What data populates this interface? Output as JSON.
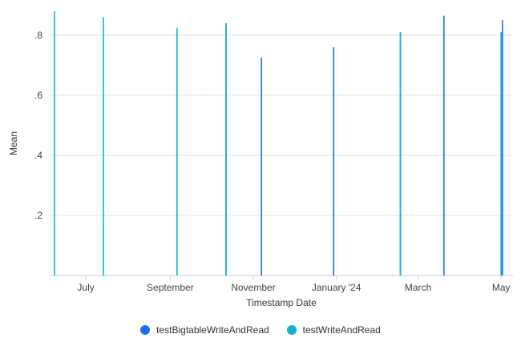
{
  "chart_data": {
    "type": "bar",
    "title": "",
    "xlabel": "Timestamp Date",
    "ylabel": "Mean",
    "ylim": [
      0,
      0.88
    ],
    "yticks": [
      {
        "value": 0.2,
        "label": ".2"
      },
      {
        "value": 0.4,
        "label": ".4"
      },
      {
        "value": 0.6,
        "label": ".6"
      },
      {
        "value": 0.8,
        "label": ".8"
      }
    ],
    "xlim": [
      "2023-06-08",
      "2024-05-05"
    ],
    "xticks": [
      {
        "date": "2023-07-01",
        "label": "July"
      },
      {
        "date": "2023-09-01",
        "label": "September"
      },
      {
        "date": "2023-11-01",
        "label": "November"
      },
      {
        "date": "2024-01-01",
        "label": "January '24"
      },
      {
        "date": "2024-03-01",
        "label": "March"
      },
      {
        "date": "2024-05-01",
        "label": "May"
      }
    ],
    "series": [
      {
        "name": "testBigtableWriteAndRead",
        "color": "#1a73e8",
        "points": [
          {
            "x": "2023-10-12",
            "y": 0.84
          },
          {
            "x": "2023-11-07",
            "y": 0.725
          },
          {
            "x": "2023-12-30",
            "y": 0.76
          },
          {
            "x": "2024-02-17",
            "y": 0.81
          },
          {
            "x": "2024-03-20",
            "y": 0.865
          },
          {
            "x": "2024-05-02",
            "y": 0.85
          },
          {
            "x": "2024-05-01",
            "y": 0.81
          }
        ]
      },
      {
        "name": "testWriteAndRead",
        "color": "#12b5cb",
        "points": [
          {
            "x": "2023-06-08",
            "y": 0.88
          },
          {
            "x": "2023-07-14",
            "y": 0.86
          },
          {
            "x": "2023-09-06",
            "y": 0.825
          },
          {
            "x": "2023-10-12",
            "y": 0.835
          },
          {
            "x": "2024-02-17",
            "y": 0.805
          },
          {
            "x": "2024-05-01",
            "y": 0.81
          }
        ]
      }
    ]
  }
}
